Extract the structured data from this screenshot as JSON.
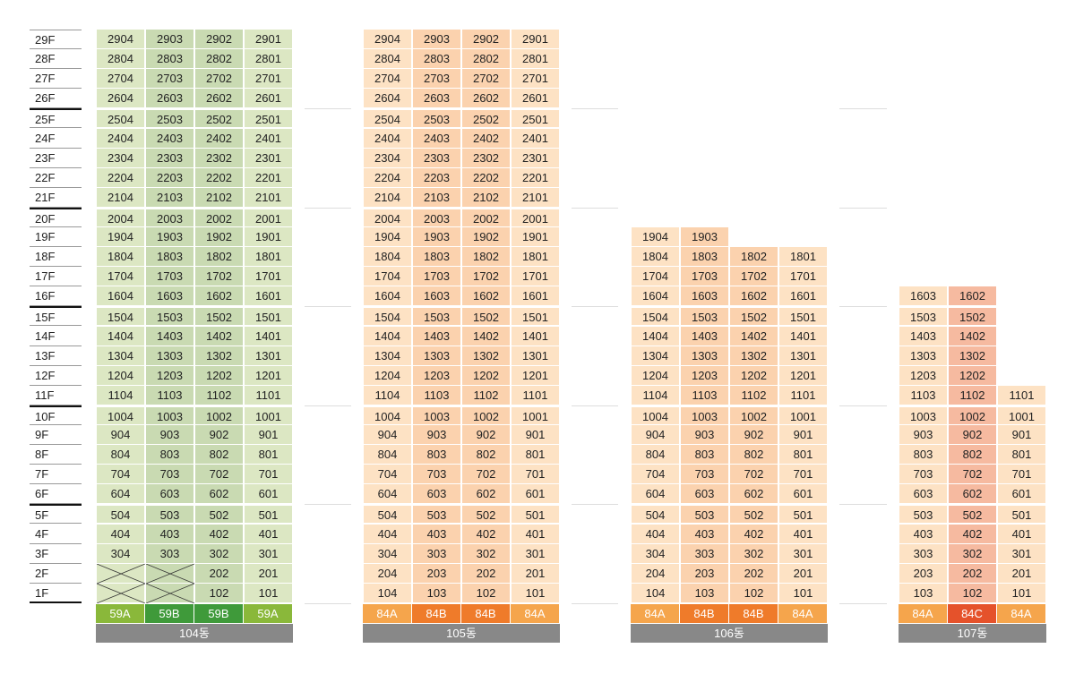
{
  "floors": [
    "29F",
    "28F",
    "27F",
    "26F",
    "25F",
    "24F",
    "23F",
    "22F",
    "21F",
    "20F",
    "19F",
    "18F",
    "17F",
    "16F",
    "15F",
    "14F",
    "13F",
    "12F",
    "11F",
    "10F",
    "9F",
    "8F",
    "7F",
    "6F",
    "5F",
    "4F",
    "3F",
    "2F",
    "1F"
  ],
  "colors": {
    "59A_cell": "#dce7c3",
    "59B_cell": "#c9dab2",
    "59A": "#8ab83a",
    "59B": "#3f9a3a",
    "84A_cell": "#fde2c4",
    "84B_cell": "#fbd2ae",
    "84C_cell": "#f6baa0",
    "84A": "#f5a54c",
    "84B": "#ef7b2a",
    "84C": "#e5522b",
    "label_bg": "#888888"
  },
  "buildings": [
    {
      "name": "104동",
      "types": [
        "59A",
        "59B",
        "59B",
        "59A"
      ],
      "top_floor": 29,
      "units": [
        [
          "2904",
          "2903",
          "2902",
          "2901"
        ],
        [
          "2804",
          "2803",
          "2802",
          "2801"
        ],
        [
          "2704",
          "2703",
          "2702",
          "2701"
        ],
        [
          "2604",
          "2603",
          "2602",
          "2601"
        ],
        [
          "2504",
          "2503",
          "2502",
          "2501"
        ],
        [
          "2404",
          "2403",
          "2402",
          "2401"
        ],
        [
          "2304",
          "2303",
          "2302",
          "2301"
        ],
        [
          "2204",
          "2203",
          "2202",
          "2201"
        ],
        [
          "2104",
          "2103",
          "2102",
          "2101"
        ],
        [
          "2004",
          "2003",
          "2002",
          "2001"
        ],
        [
          "1904",
          "1903",
          "1902",
          "1901"
        ],
        [
          "1804",
          "1803",
          "1802",
          "1801"
        ],
        [
          "1704",
          "1703",
          "1702",
          "1701"
        ],
        [
          "1604",
          "1603",
          "1602",
          "1601"
        ],
        [
          "1504",
          "1503",
          "1502",
          "1501"
        ],
        [
          "1404",
          "1403",
          "1402",
          "1401"
        ],
        [
          "1304",
          "1303",
          "1302",
          "1301"
        ],
        [
          "1204",
          "1203",
          "1202",
          "1201"
        ],
        [
          "1104",
          "1103",
          "1102",
          "1101"
        ],
        [
          "1004",
          "1003",
          "1002",
          "1001"
        ],
        [
          "904",
          "903",
          "902",
          "901"
        ],
        [
          "804",
          "803",
          "802",
          "801"
        ],
        [
          "704",
          "703",
          "702",
          "701"
        ],
        [
          "604",
          "603",
          "602",
          "601"
        ],
        [
          "504",
          "503",
          "502",
          "501"
        ],
        [
          "404",
          "403",
          "402",
          "401"
        ],
        [
          "304",
          "303",
          "302",
          "301"
        ],
        [
          "X",
          "X",
          "202",
          "201"
        ],
        [
          "X",
          "X",
          "102",
          "101"
        ]
      ]
    },
    {
      "name": "105동",
      "types": [
        "84A",
        "84B",
        "84B",
        "84A"
      ],
      "top_floor": 29,
      "units": [
        [
          "2904",
          "2903",
          "2902",
          "2901"
        ],
        [
          "2804",
          "2803",
          "2802",
          "2801"
        ],
        [
          "2704",
          "2703",
          "2702",
          "2701"
        ],
        [
          "2604",
          "2603",
          "2602",
          "2601"
        ],
        [
          "2504",
          "2503",
          "2502",
          "2501"
        ],
        [
          "2404",
          "2403",
          "2402",
          "2401"
        ],
        [
          "2304",
          "2303",
          "2302",
          "2301"
        ],
        [
          "2204",
          "2203",
          "2202",
          "2201"
        ],
        [
          "2104",
          "2103",
          "2102",
          "2101"
        ],
        [
          "2004",
          "2003",
          "2002",
          "2001"
        ],
        [
          "1904",
          "1903",
          "1902",
          "1901"
        ],
        [
          "1804",
          "1803",
          "1802",
          "1801"
        ],
        [
          "1704",
          "1703",
          "1702",
          "1701"
        ],
        [
          "1604",
          "1603",
          "1602",
          "1601"
        ],
        [
          "1504",
          "1503",
          "1502",
          "1501"
        ],
        [
          "1404",
          "1403",
          "1402",
          "1401"
        ],
        [
          "1304",
          "1303",
          "1302",
          "1301"
        ],
        [
          "1204",
          "1203",
          "1202",
          "1201"
        ],
        [
          "1104",
          "1103",
          "1102",
          "1101"
        ],
        [
          "1004",
          "1003",
          "1002",
          "1001"
        ],
        [
          "904",
          "903",
          "902",
          "901"
        ],
        [
          "804",
          "803",
          "802",
          "801"
        ],
        [
          "704",
          "703",
          "702",
          "701"
        ],
        [
          "604",
          "603",
          "602",
          "601"
        ],
        [
          "504",
          "503",
          "502",
          "501"
        ],
        [
          "404",
          "403",
          "402",
          "401"
        ],
        [
          "304",
          "303",
          "302",
          "301"
        ],
        [
          "204",
          "203",
          "202",
          "201"
        ],
        [
          "104",
          "103",
          "102",
          "101"
        ]
      ]
    },
    {
      "name": "106동",
      "types": [
        "84A",
        "84B",
        "84B",
        "84A"
      ],
      "top_floor": 19,
      "units": [
        [
          "1904",
          "1903",
          null,
          null
        ],
        [
          "1804",
          "1803",
          "1802",
          "1801"
        ],
        [
          "1704",
          "1703",
          "1702",
          "1701"
        ],
        [
          "1604",
          "1603",
          "1602",
          "1601"
        ],
        [
          "1504",
          "1503",
          "1502",
          "1501"
        ],
        [
          "1404",
          "1403",
          "1402",
          "1401"
        ],
        [
          "1304",
          "1303",
          "1302",
          "1301"
        ],
        [
          "1204",
          "1203",
          "1202",
          "1201"
        ],
        [
          "1104",
          "1103",
          "1102",
          "1101"
        ],
        [
          "1004",
          "1003",
          "1002",
          "1001"
        ],
        [
          "904",
          "903",
          "902",
          "901"
        ],
        [
          "804",
          "803",
          "802",
          "801"
        ],
        [
          "704",
          "703",
          "702",
          "701"
        ],
        [
          "604",
          "603",
          "602",
          "601"
        ],
        [
          "504",
          "503",
          "502",
          "501"
        ],
        [
          "404",
          "403",
          "402",
          "401"
        ],
        [
          "304",
          "303",
          "302",
          "301"
        ],
        [
          "204",
          "203",
          "202",
          "201"
        ],
        [
          "104",
          "103",
          "102",
          "101"
        ]
      ]
    },
    {
      "name": "107동",
      "types": [
        "84A",
        "84C",
        "84A"
      ],
      "top_floor": 16,
      "units": [
        [
          "1603",
          "1602",
          null
        ],
        [
          "1503",
          "1502",
          null
        ],
        [
          "1403",
          "1402",
          null
        ],
        [
          "1303",
          "1302",
          null
        ],
        [
          "1203",
          "1202",
          null
        ],
        [
          "1103",
          "1102",
          "1101"
        ],
        [
          "1003",
          "1002",
          "1001"
        ],
        [
          "903",
          "902",
          "901"
        ],
        [
          "803",
          "802",
          "801"
        ],
        [
          "703",
          "702",
          "701"
        ],
        [
          "603",
          "602",
          "601"
        ],
        [
          "503",
          "502",
          "501"
        ],
        [
          "403",
          "402",
          "401"
        ],
        [
          "303",
          "302",
          "301"
        ],
        [
          "203",
          "202",
          "201"
        ],
        [
          "103",
          "102",
          "101"
        ]
      ]
    }
  ]
}
